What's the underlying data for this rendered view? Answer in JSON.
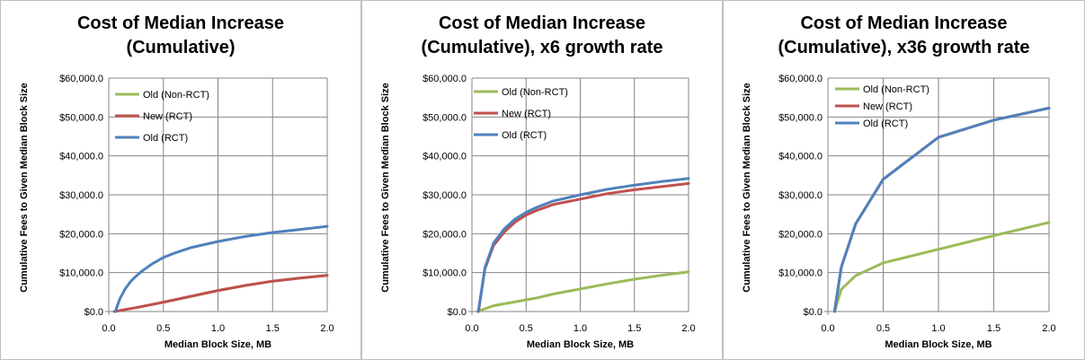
{
  "chart_data": [
    {
      "type": "line",
      "title": [
        "Cost of Median Increase",
        "(Cumulative)"
      ],
      "xlabel": "Median Block Size, MB",
      "ylabel": "Cumulative Fees to Given Median Block Size",
      "xlim": [
        0,
        2
      ],
      "ylim": [
        0,
        60000
      ],
      "xticks": [
        "0.0",
        "0.5",
        "1.0",
        "1.5",
        "2.0"
      ],
      "yticks": [
        "$0.0",
        "$10,000.0",
        "$20,000.0",
        "$30,000.0",
        "$40,000.0",
        "$50,000.0",
        "$60,000.0"
      ],
      "grid": true,
      "legend_position": "top-left",
      "series": [
        {
          "name": "Old (Non-RCT)",
          "color": "#9bbb59",
          "points": [
            [
              0.05,
              0
            ],
            [
              0.25,
              1000
            ],
            [
              0.5,
              2400
            ],
            [
              0.75,
              3900
            ],
            [
              1.0,
              5400
            ],
            [
              1.25,
              6700
            ],
            [
              1.5,
              7800
            ],
            [
              1.75,
              8600
            ],
            [
              2.0,
              9300
            ]
          ]
        },
        {
          "name": "New (RCT)",
          "color": "#c0504d",
          "points": [
            [
              0.05,
              0
            ],
            [
              0.25,
              1000
            ],
            [
              0.5,
              2400
            ],
            [
              0.75,
              3900
            ],
            [
              1.0,
              5400
            ],
            [
              1.25,
              6700
            ],
            [
              1.5,
              7800
            ],
            [
              1.75,
              8600
            ],
            [
              2.0,
              9300
            ]
          ]
        },
        {
          "name": "Old (RCT)",
          "color": "#4f81bd",
          "points": [
            [
              0.06,
              0
            ],
            [
              0.1,
              3200
            ],
            [
              0.15,
              5800
            ],
            [
              0.2,
              7700
            ],
            [
              0.25,
              9100
            ],
            [
              0.3,
              10300
            ],
            [
              0.4,
              12300
            ],
            [
              0.5,
              13900
            ],
            [
              0.6,
              15000
            ],
            [
              0.75,
              16400
            ],
            [
              1.0,
              18000
            ],
            [
              1.25,
              19300
            ],
            [
              1.5,
              20300
            ],
            [
              1.75,
              21100
            ],
            [
              2.0,
              21900
            ]
          ]
        }
      ]
    },
    {
      "type": "line",
      "title": [
        "Cost of Median Increase",
        "(Cumulative), x6 growth rate"
      ],
      "xlabel": "Median Block Size, MB",
      "ylabel": "Cumulative Fees to Given Median Block Size",
      "xlim": [
        0,
        2
      ],
      "ylim": [
        0,
        60000
      ],
      "xticks": [
        "0.0",
        "0.5",
        "1.0",
        "1.5",
        "2.0"
      ],
      "yticks": [
        "$0.0",
        "$10,000.0",
        "$20,000.0",
        "$30,000.0",
        "$40,000.0",
        "$50,000.0",
        "$60,000.0"
      ],
      "grid": true,
      "legend_position": "top-left",
      "series": [
        {
          "name": "Old (Non-RCT)",
          "color": "#9bbb59",
          "points": [
            [
              0.05,
              0
            ],
            [
              0.2,
              1500
            ],
            [
              0.5,
              3000
            ],
            [
              0.6,
              3500
            ],
            [
              0.75,
              4500
            ],
            [
              1.0,
              5800
            ],
            [
              1.25,
              7100
            ],
            [
              1.5,
              8300
            ],
            [
              1.75,
              9300
            ],
            [
              2.0,
              10200
            ]
          ]
        },
        {
          "name": "New (RCT)",
          "color": "#c0504d",
          "points": [
            [
              0.06,
              0
            ],
            [
              0.12,
              11000
            ],
            [
              0.2,
              17000
            ],
            [
              0.3,
              20500
            ],
            [
              0.4,
              23000
            ],
            [
              0.5,
              24800
            ],
            [
              0.6,
              26000
            ],
            [
              0.75,
              27500
            ],
            [
              1.0,
              28900
            ],
            [
              1.25,
              30300
            ],
            [
              1.5,
              31300
            ],
            [
              1.75,
              32100
            ],
            [
              2.0,
              32900
            ]
          ]
        },
        {
          "name": "Old (RCT)",
          "color": "#4f81bd",
          "points": [
            [
              0.06,
              0
            ],
            [
              0.12,
              11300
            ],
            [
              0.2,
              17600
            ],
            [
              0.3,
              21300
            ],
            [
              0.4,
              23800
            ],
            [
              0.5,
              25500
            ],
            [
              0.6,
              26800
            ],
            [
              0.75,
              28400
            ],
            [
              1.0,
              30000
            ],
            [
              1.25,
              31400
            ],
            [
              1.5,
              32500
            ],
            [
              1.75,
              33400
            ],
            [
              2.0,
              34200
            ]
          ]
        }
      ]
    },
    {
      "type": "line",
      "title": [
        "Cost of Median Increase",
        "(Cumulative), x36 growth rate"
      ],
      "xlabel": "Median Block Size, MB",
      "ylabel": "Cumulative Fees to Given Median Block Size",
      "xlim": [
        0,
        2
      ],
      "ylim": [
        0,
        60000
      ],
      "xticks": [
        "0.0",
        "0.5",
        "1.0",
        "1.5",
        "2.0"
      ],
      "yticks": [
        "$0.0",
        "$10,000.0",
        "$20,000.0",
        "$30,000.0",
        "$40,000.0",
        "$50,000.0",
        "$60,000.0"
      ],
      "grid": true,
      "legend_position": "top-left",
      "series": [
        {
          "name": "Old (Non-RCT)",
          "color": "#9bbb59",
          "points": [
            [
              0.06,
              0
            ],
            [
              0.12,
              5700
            ],
            [
              0.25,
              9200
            ],
            [
              0.5,
              12500
            ],
            [
              1.0,
              16000
            ],
            [
              1.5,
              19500
            ],
            [
              2.0,
              22900
            ]
          ]
        },
        {
          "name": "New (RCT)",
          "color": "#c0504d",
          "points": [
            [
              0.06,
              0
            ],
            [
              0.12,
              11300
            ],
            [
              0.25,
              22500
            ],
            [
              0.5,
              34000
            ],
            [
              1.0,
              44800
            ],
            [
              1.5,
              49200
            ],
            [
              2.0,
              52300
            ]
          ]
        },
        {
          "name": "Old (RCT)",
          "color": "#4f81bd",
          "points": [
            [
              0.06,
              0
            ],
            [
              0.12,
              11300
            ],
            [
              0.25,
              22500
            ],
            [
              0.5,
              34000
            ],
            [
              1.0,
              44800
            ],
            [
              1.5,
              49200
            ],
            [
              2.0,
              52300
            ]
          ]
        }
      ]
    }
  ]
}
